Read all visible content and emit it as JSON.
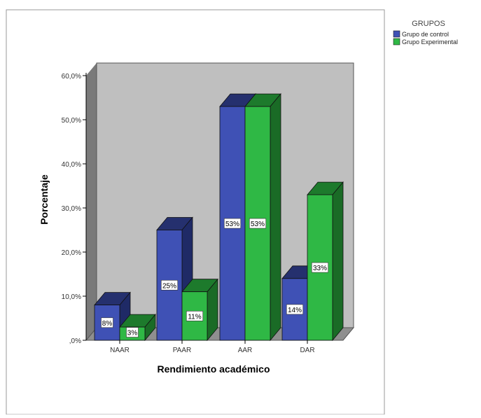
{
  "chart_data": {
    "type": "bar",
    "title": "",
    "xlabel": "Rendimiento académico",
    "ylabel": "Porcentaje",
    "categories": [
      "NAAR",
      "PAAR",
      "AAR",
      "DAR"
    ],
    "series": [
      {
        "name": "Grupo de control",
        "values": [
          8,
          25,
          53,
          14
        ],
        "labels": [
          "8%",
          "25%",
          "53%",
          "14%"
        ]
      },
      {
        "name": "Grupo Experimental",
        "values": [
          3,
          11,
          53,
          33
        ],
        "labels": [
          "3%",
          "11%",
          "53%",
          "33%"
        ]
      }
    ],
    "ylim": [
      0,
      60
    ],
    "y_ticks": [
      0,
      10,
      20,
      30,
      40,
      50,
      60
    ],
    "y_tick_labels": [
      ",0%",
      "10,0%",
      "20,0%",
      "30,0%",
      "40,0%",
      "50,0%",
      "60,0%"
    ],
    "legend": {
      "title": "GRUPOS",
      "placement": "top-right"
    },
    "grid": false,
    "style": "3d"
  },
  "colors": {
    "series": [
      "#3f51b5",
      "#2fb845"
    ],
    "series_top": [
      "#25306e",
      "#1d7a2c"
    ],
    "series_side": [
      "#1f2a66",
      "#1a6b26"
    ],
    "wall": "#bfbfbf",
    "side_wall": "#7a7a7a",
    "floor": "#8f8f8f",
    "frame": "#9a9a9a"
  }
}
